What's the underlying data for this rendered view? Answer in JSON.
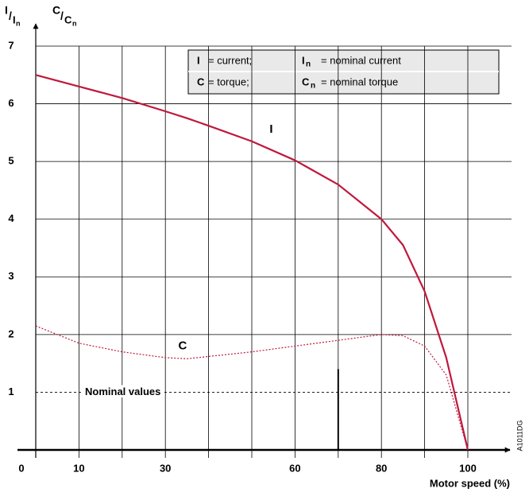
{
  "chart_data": {
    "type": "line",
    "xlabel": "Motor speed (%)",
    "ylabel": [
      {
        "num": "I",
        "den": "I",
        "sub": "n"
      },
      {
        "num": "C",
        "den": "C",
        "sub": "n"
      }
    ],
    "xlim": [
      0,
      100
    ],
    "ylim": [
      0,
      7
    ],
    "xticks": [
      0,
      10,
      30,
      60,
      80,
      100
    ],
    "x_grid": [
      10,
      20,
      30,
      40,
      50,
      60,
      70,
      80,
      90,
      100
    ],
    "yticks": [
      1,
      2,
      3,
      4,
      5,
      6,
      7
    ],
    "grid": true,
    "x": [
      0,
      10,
      20,
      30,
      35,
      40,
      50,
      60,
      70,
      80,
      85,
      90,
      95,
      100
    ],
    "series": [
      {
        "name": "I",
        "color": "#c0183c",
        "style": "solid",
        "values": [
          6.5,
          6.3,
          6.1,
          5.87,
          5.75,
          5.62,
          5.35,
          5.02,
          4.6,
          4.0,
          3.55,
          2.75,
          1.6,
          0
        ]
      },
      {
        "name": "C",
        "color": "#c0183c",
        "style": "dotted",
        "values": [
          2.15,
          1.85,
          1.7,
          1.6,
          1.58,
          1.62,
          1.7,
          1.8,
          1.9,
          2.0,
          1.98,
          1.8,
          1.3,
          0
        ]
      }
    ],
    "series_labels": [
      {
        "series": 0,
        "x": 54.5,
        "y": 5.55
      },
      {
        "series": 1,
        "x": 34,
        "y": 1.8
      }
    ],
    "nominal": {
      "label": "Nominal values",
      "level": 1,
      "marker_x": 70,
      "marker_top": 1.4
    },
    "legend": [
      {
        "symbol": "I",
        "text": "= current;"
      },
      {
        "symbol": "I",
        "sub": "n",
        "text": "= nominal current"
      },
      {
        "symbol": "C",
        "text": "= torque;"
      },
      {
        "symbol": "C",
        "sub": "n",
        "text": "= nominal torque"
      }
    ],
    "code": "A1011DG"
  }
}
